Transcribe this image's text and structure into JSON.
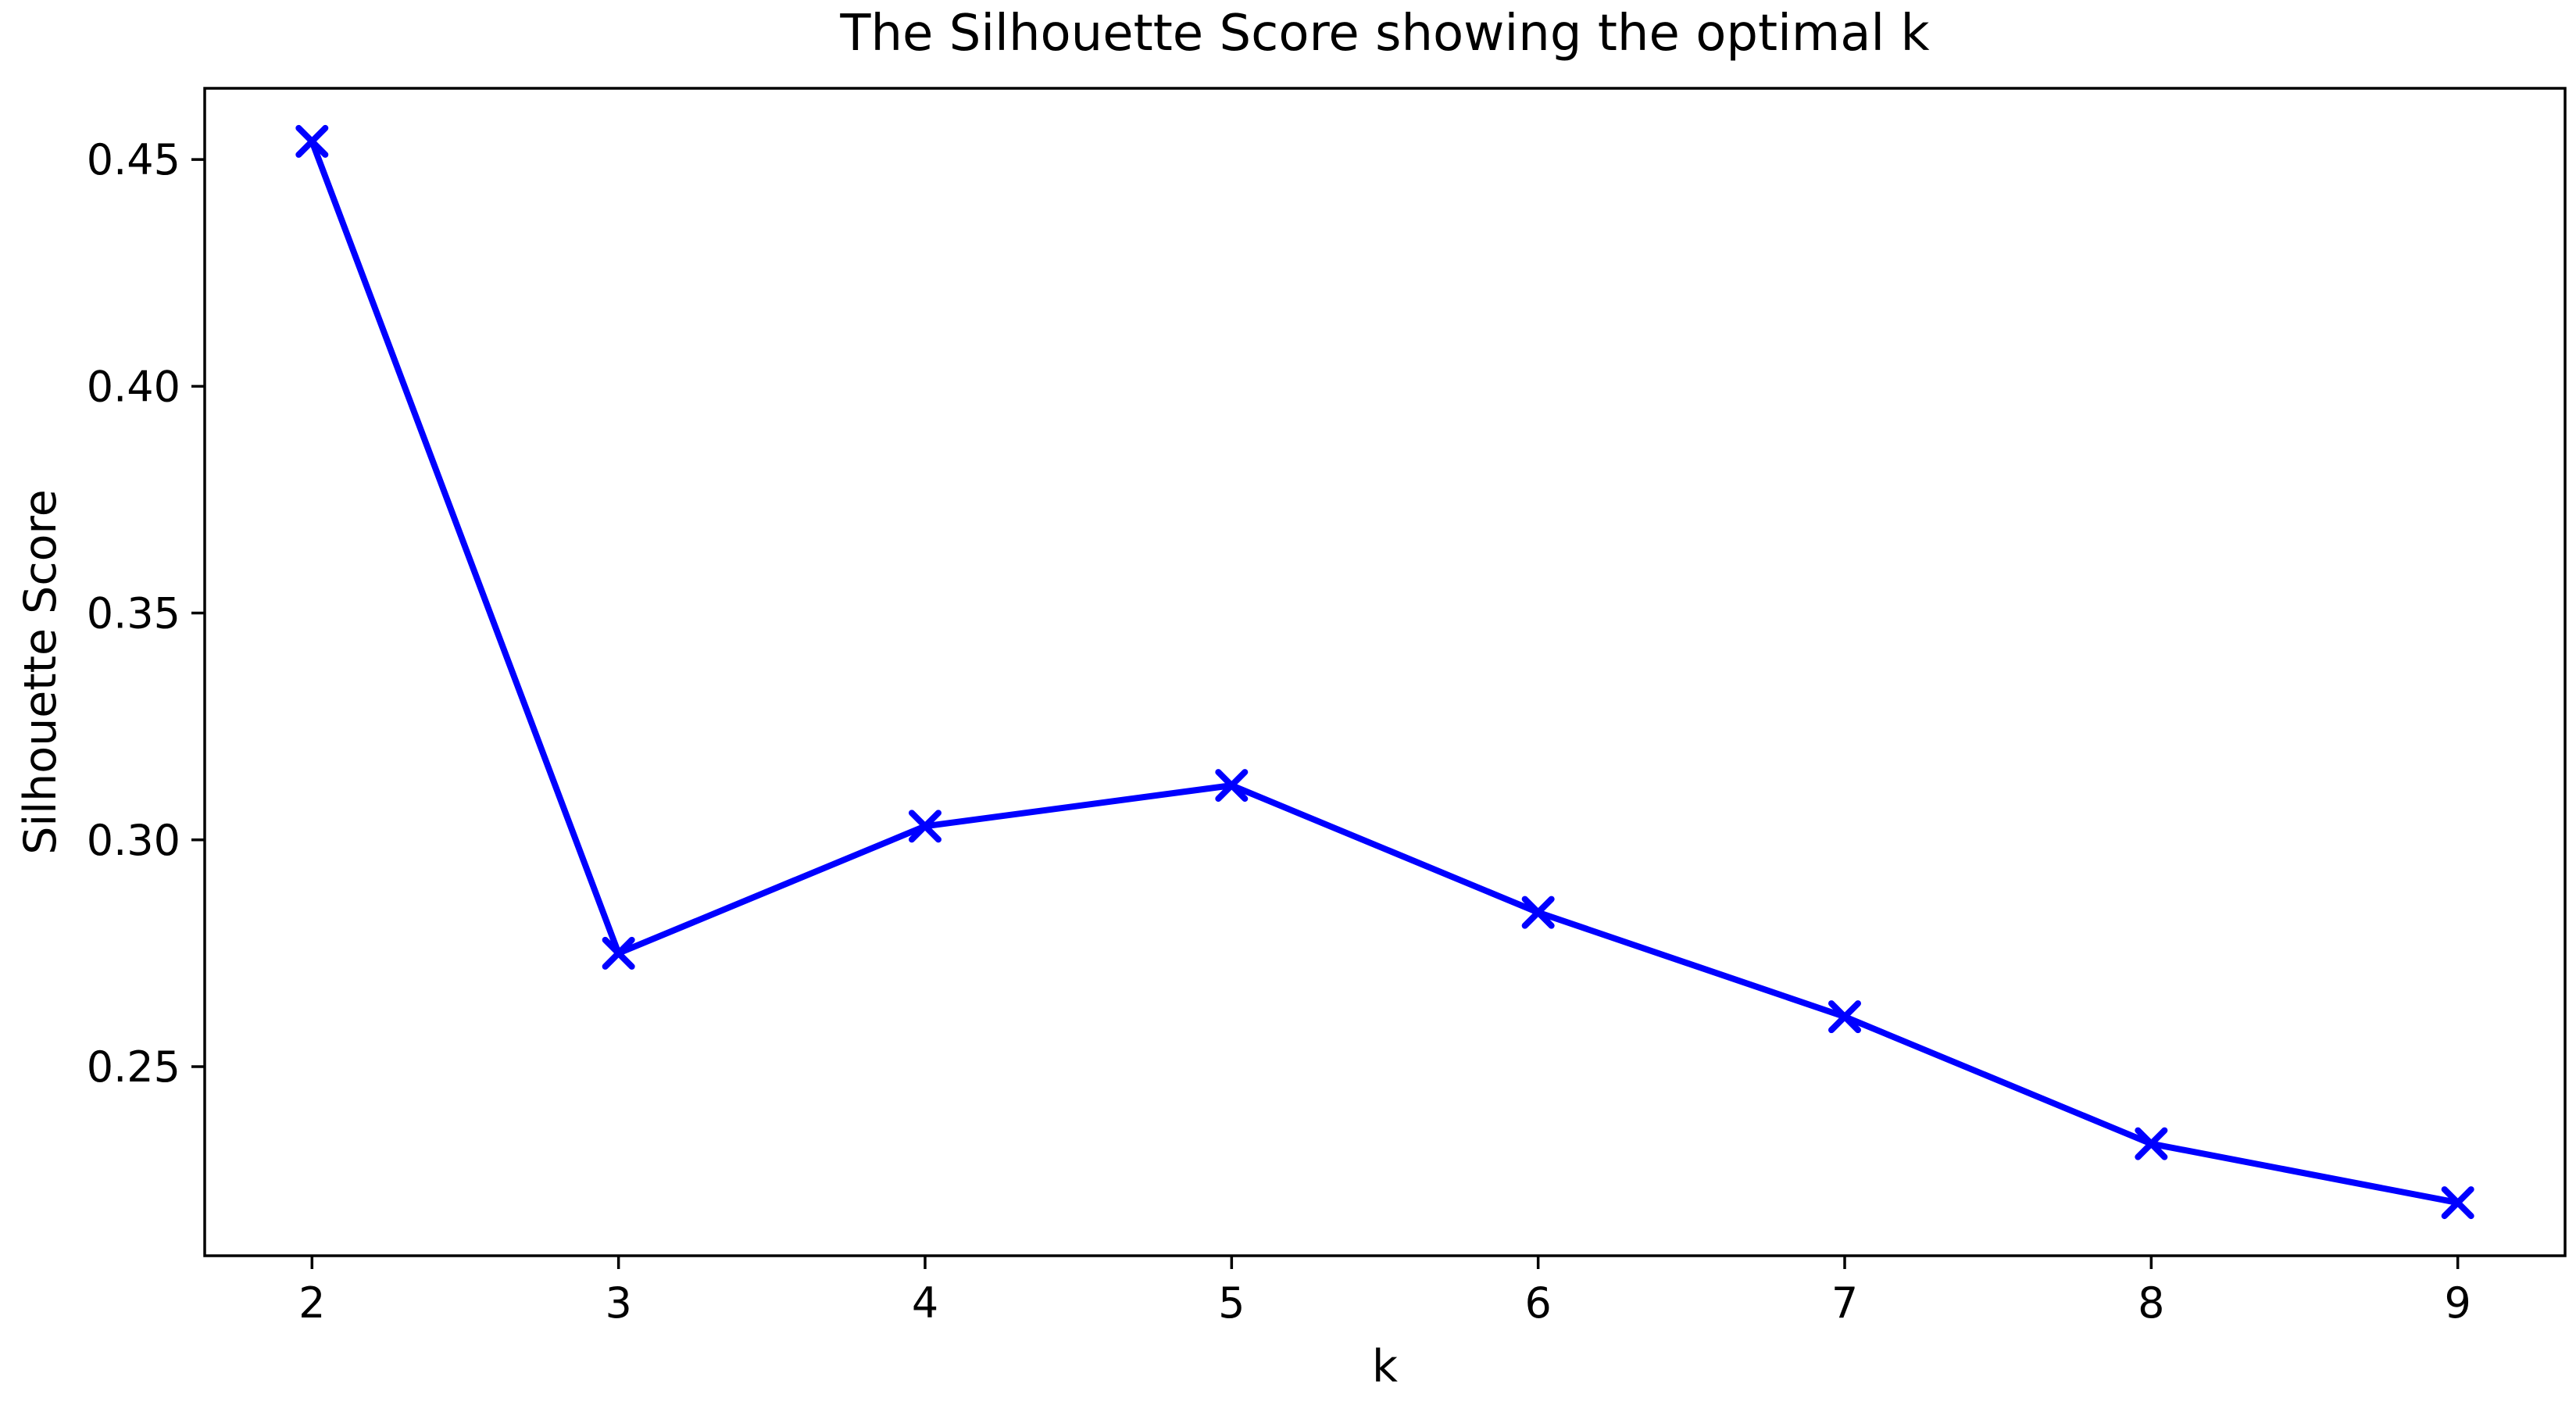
{
  "chart_data": {
    "type": "line",
    "title": "The Silhouette Score showing the optimal k",
    "xlabel": "k",
    "ylabel": "Silhouette Score",
    "x": [
      2,
      3,
      4,
      5,
      6,
      7,
      8,
      9
    ],
    "y": [
      0.454,
      0.275,
      0.303,
      0.312,
      0.284,
      0.261,
      0.233,
      0.22
    ],
    "xticks": [
      2,
      3,
      4,
      5,
      6,
      7,
      8,
      9
    ],
    "xtick_labels": [
      "2",
      "3",
      "4",
      "5",
      "6",
      "7",
      "8",
      "9"
    ],
    "yticks": [
      0.25,
      0.3,
      0.35,
      0.4,
      0.45
    ],
    "ytick_labels": [
      "0.25",
      "0.30",
      "0.35",
      "0.40",
      "0.45"
    ],
    "xlim": [
      1.65,
      9.35
    ],
    "ylim": [
      0.2083,
      0.4657
    ],
    "line_color": "#0000ff",
    "axis_color": "#000000",
    "marker": "x",
    "grid": false,
    "legend": false
  }
}
